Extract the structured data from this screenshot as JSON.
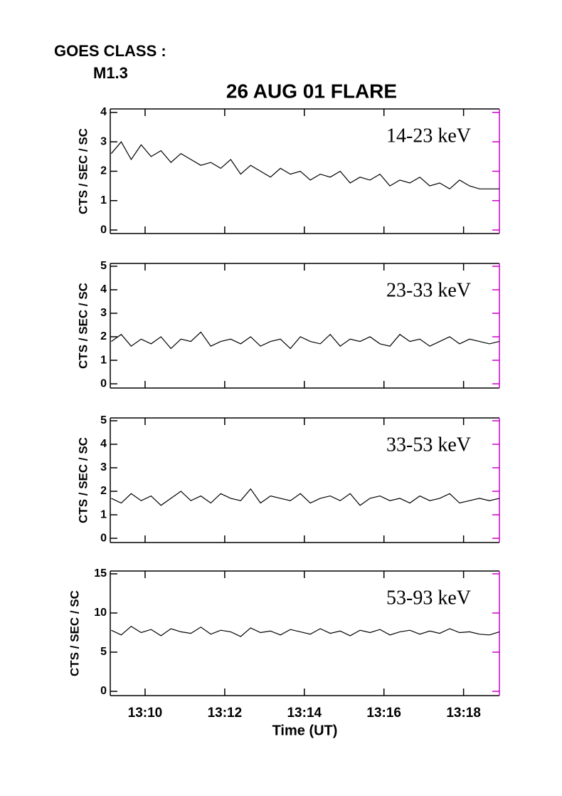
{
  "goes_label": "GOES CLASS :",
  "goes_class": "M1.3",
  "title": "26 AUG 01 FLARE",
  "chart_data": [
    {
      "type": "line",
      "ylabel": "CTS / SEC / SC",
      "annotation": "14-23 keV",
      "color": "#000000",
      "xlim": [
        789.125,
        798.9
      ],
      "ylim": [
        -0.12,
        4.12
      ],
      "yticks": [
        0,
        1,
        2,
        3,
        4
      ],
      "x": [
        789.15,
        789.4,
        789.65,
        789.9,
        790.15,
        790.4,
        790.65,
        790.9,
        791.15,
        791.4,
        791.65,
        791.9,
        792.15,
        792.4,
        792.65,
        792.9,
        793.15,
        793.4,
        793.65,
        793.9,
        794.15,
        794.4,
        794.65,
        794.9,
        795.15,
        795.4,
        795.65,
        795.9,
        796.15,
        796.4,
        796.65,
        796.9,
        797.15,
        797.4,
        797.65,
        797.9,
        798.15,
        798.4,
        798.65,
        798.9
      ],
      "values": [
        2.6,
        3.0,
        2.4,
        2.9,
        2.5,
        2.7,
        2.3,
        2.6,
        2.4,
        2.2,
        2.3,
        2.1,
        2.4,
        1.9,
        2.2,
        2.0,
        1.8,
        2.1,
        1.9,
        2.0,
        1.7,
        1.9,
        1.8,
        2.0,
        1.6,
        1.8,
        1.7,
        1.9,
        1.5,
        1.7,
        1.6,
        1.8,
        1.5,
        1.6,
        1.4,
        1.7,
        1.5,
        1.4,
        1.4,
        1.4
      ]
    },
    {
      "type": "line",
      "ylabel": "CTS / SEC / SC",
      "annotation": "23-33 keV",
      "color": "#000000",
      "xlim": [
        789.125,
        798.9
      ],
      "ylim": [
        -0.18,
        5.12
      ],
      "yticks": [
        0,
        1,
        2,
        3,
        4,
        5
      ],
      "x": [
        789.15,
        789.4,
        789.65,
        789.9,
        790.15,
        790.4,
        790.65,
        790.9,
        791.15,
        791.4,
        791.65,
        791.9,
        792.15,
        792.4,
        792.65,
        792.9,
        793.15,
        793.4,
        793.65,
        793.9,
        794.15,
        794.4,
        794.65,
        794.9,
        795.15,
        795.4,
        795.65,
        795.9,
        796.15,
        796.4,
        796.65,
        796.9,
        797.15,
        797.4,
        797.65,
        797.9,
        798.15,
        798.4,
        798.65,
        798.9
      ],
      "values": [
        1.8,
        2.1,
        1.6,
        1.9,
        1.7,
        2.0,
        1.5,
        1.9,
        1.8,
        2.2,
        1.6,
        1.8,
        1.9,
        1.7,
        2.0,
        1.6,
        1.8,
        1.9,
        1.5,
        2.0,
        1.8,
        1.7,
        2.1,
        1.6,
        1.9,
        1.8,
        2.0,
        1.7,
        1.6,
        2.1,
        1.8,
        1.9,
        1.6,
        1.8,
        2.0,
        1.7,
        1.9,
        1.8,
        1.7,
        1.8
      ]
    },
    {
      "type": "line",
      "ylabel": "CTS / SEC / SC",
      "annotation": "33-53 keV",
      "color": "#000000",
      "xlim": [
        789.125,
        798.9
      ],
      "ylim": [
        -0.18,
        5.12
      ],
      "yticks": [
        0,
        1,
        2,
        3,
        4,
        5
      ],
      "x": [
        789.15,
        789.4,
        789.65,
        789.9,
        790.15,
        790.4,
        790.65,
        790.9,
        791.15,
        791.4,
        791.65,
        791.9,
        792.15,
        792.4,
        792.65,
        792.9,
        793.15,
        793.4,
        793.65,
        793.9,
        794.15,
        794.4,
        794.65,
        794.9,
        795.15,
        795.4,
        795.65,
        795.9,
        796.15,
        796.4,
        796.65,
        796.9,
        797.15,
        797.4,
        797.65,
        797.9,
        798.15,
        798.4,
        798.65,
        798.9
      ],
      "values": [
        1.7,
        1.5,
        1.9,
        1.6,
        1.8,
        1.4,
        1.7,
        2.0,
        1.6,
        1.8,
        1.5,
        1.9,
        1.7,
        1.6,
        2.1,
        1.5,
        1.8,
        1.7,
        1.6,
        1.9,
        1.5,
        1.7,
        1.8,
        1.6,
        1.9,
        1.4,
        1.7,
        1.8,
        1.6,
        1.7,
        1.5,
        1.8,
        1.6,
        1.7,
        1.9,
        1.5,
        1.6,
        1.7,
        1.6,
        1.7
      ]
    },
    {
      "type": "line",
      "ylabel": "CTS / SEC / SC",
      "annotation": "53-93 keV",
      "color": "#000000",
      "xlabel": "Time (UT)",
      "xlim": [
        789.125,
        798.9
      ],
      "ylim": [
        -0.55,
        15.36
      ],
      "yticks": [
        0,
        5,
        10,
        15
      ],
      "xticks": [
        {
          "value": 790,
          "label": "13:10"
        },
        {
          "value": 792,
          "label": "13:12"
        },
        {
          "value": 794,
          "label": "13:14"
        },
        {
          "value": 796,
          "label": "13:16"
        },
        {
          "value": 798,
          "label": "13:18"
        }
      ],
      "x": [
        789.15,
        789.4,
        789.65,
        789.9,
        790.15,
        790.4,
        790.65,
        790.9,
        791.15,
        791.4,
        791.65,
        791.9,
        792.15,
        792.4,
        792.65,
        792.9,
        793.15,
        793.4,
        793.65,
        793.9,
        794.15,
        794.4,
        794.65,
        794.9,
        795.15,
        795.4,
        795.65,
        795.9,
        796.15,
        796.4,
        796.65,
        796.9,
        797.15,
        797.4,
        797.65,
        797.9,
        798.15,
        798.4,
        798.65,
        798.9
      ],
      "values": [
        7.8,
        7.2,
        8.3,
        7.5,
        7.9,
        7.1,
        8.0,
        7.6,
        7.4,
        8.2,
        7.3,
        7.8,
        7.6,
        7.0,
        8.1,
        7.5,
        7.7,
        7.2,
        7.9,
        7.6,
        7.3,
        8.0,
        7.4,
        7.7,
        7.1,
        7.8,
        7.5,
        7.9,
        7.2,
        7.6,
        7.8,
        7.3,
        7.7,
        7.4,
        8.0,
        7.5,
        7.6,
        7.3,
        7.2,
        7.6
      ]
    }
  ]
}
